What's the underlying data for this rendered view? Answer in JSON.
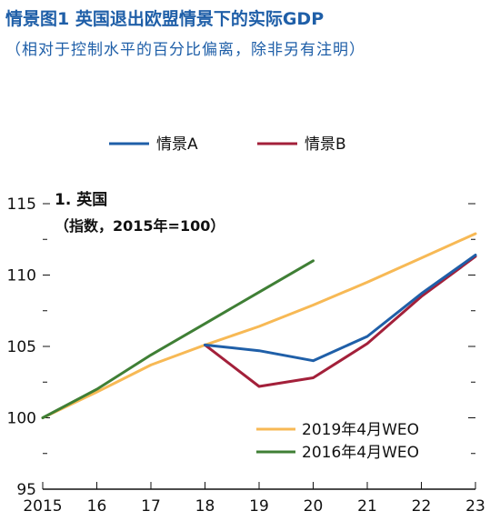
{
  "title": "情景图1 英国退出欧盟情景下的实际GDP",
  "subtitle": "（相对于控制水平的百分比偏离，除非另有注明）",
  "chart_data": {
    "type": "line",
    "panel_title": "1. 英国",
    "panel_subtitle": "（指数，2015年=100）",
    "x": [
      "2015",
      "16",
      "17",
      "18",
      "19",
      "20",
      "21",
      "22",
      "23"
    ],
    "ylim": [
      95,
      115
    ],
    "yticks": [
      95,
      100,
      105,
      110,
      115
    ],
    "grid": false,
    "series": [
      {
        "name": "情景A",
        "color": "#1f5fa8",
        "x": [
          "18",
          "19",
          "20",
          "21",
          "22",
          "23"
        ],
        "values": [
          105.1,
          104.7,
          104.0,
          105.7,
          108.7,
          111.4
        ]
      },
      {
        "name": "情景B",
        "color": "#a3203a",
        "x": [
          "18",
          "19",
          "20",
          "21",
          "22",
          "23"
        ],
        "values": [
          105.1,
          102.2,
          102.8,
          105.2,
          108.5,
          111.3
        ]
      },
      {
        "name": "2019年4月WEO",
        "color": "#f7b955",
        "x": [
          "2015",
          "16",
          "17",
          "18",
          "19",
          "20",
          "21",
          "22",
          "23"
        ],
        "values": [
          100.0,
          101.8,
          103.7,
          105.1,
          106.4,
          107.9,
          109.5,
          111.2,
          112.9
        ]
      },
      {
        "name": "2016年4月WEO",
        "color": "#3f7f35",
        "x": [
          "2015",
          "16",
          "17",
          "18",
          "19",
          "20"
        ],
        "values": [
          100.0,
          102.0,
          104.4,
          106.6,
          108.8,
          111.0
        ]
      }
    ],
    "legend_top": [
      "情景A",
      "情景B"
    ],
    "legend_inside": [
      "2019年4月WEO",
      "2016年4月WEO"
    ]
  }
}
